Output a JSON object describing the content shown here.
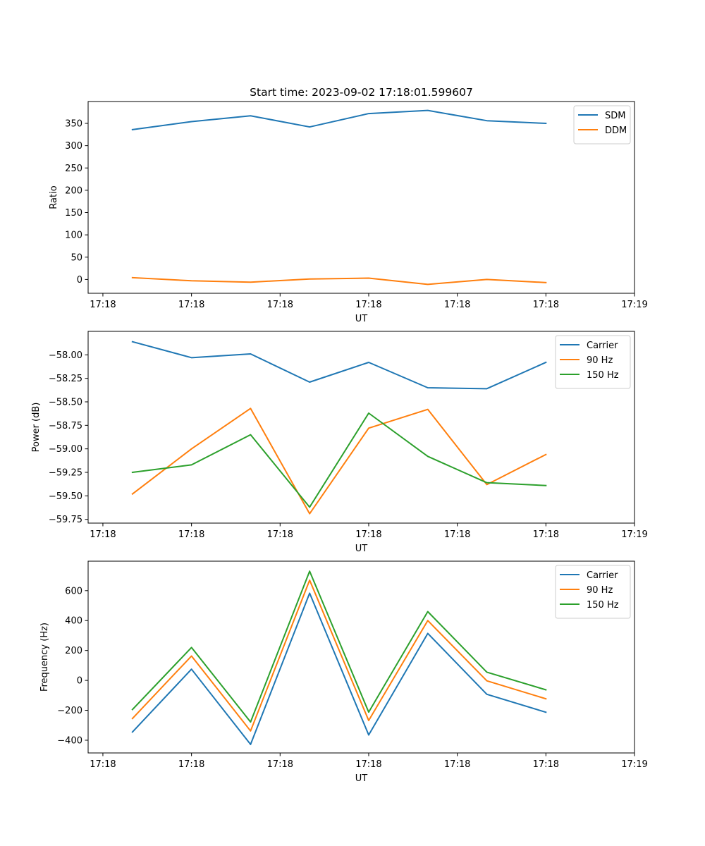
{
  "title": "Start time: 2023-09-02 17:18:01.599607",
  "colors": {
    "blue": "#1f77b4",
    "orange": "#ff7f0e",
    "green": "#2ca02c"
  },
  "chart_data": [
    {
      "type": "line",
      "title": "Start time: 2023-09-02 17:18:01.599607",
      "xlabel": "UT",
      "ylabel": "Ratio",
      "x": [
        1,
        2,
        3,
        4,
        5,
        6,
        7,
        8
      ],
      "xlim": [
        0.25,
        9.5
      ],
      "xticks": [
        0.5,
        2,
        3.5,
        5,
        6.5,
        8,
        9.5
      ],
      "xtick_labels": [
        "17:18",
        "17:18",
        "17:18",
        "17:18",
        "17:18",
        "17:18",
        "17:19"
      ],
      "ylim": [
        -31,
        399
      ],
      "yticks": [
        0,
        50,
        100,
        150,
        200,
        250,
        300,
        350
      ],
      "ytick_labels": [
        "0",
        "50",
        "100",
        "150",
        "200",
        "250",
        "300",
        "350"
      ],
      "legend": "top-right",
      "series": [
        {
          "name": "SDM",
          "color": "#1f77b4",
          "values": [
            336,
            354,
            367,
            342,
            372,
            379,
            356,
            350
          ]
        },
        {
          "name": "DDM",
          "color": "#ff7f0e",
          "values": [
            4,
            -3,
            -6,
            1,
            3,
            -11,
            0,
            -7
          ]
        }
      ]
    },
    {
      "type": "line",
      "title": "",
      "xlabel": "UT",
      "ylabel": "Power (dB)",
      "x": [
        1,
        2,
        3,
        4,
        5,
        6,
        7,
        8
      ],
      "xlim": [
        0.25,
        9.5
      ],
      "xticks": [
        0.5,
        2,
        3.5,
        5,
        6.5,
        8,
        9.5
      ],
      "xtick_labels": [
        "17:18",
        "17:18",
        "17:18",
        "17:18",
        "17:18",
        "17:18",
        "17:19"
      ],
      "ylim": [
        -59.79,
        -57.75
      ],
      "yticks": [
        -58.0,
        -58.25,
        -58.5,
        -58.75,
        -59.0,
        -59.25,
        -59.5,
        -59.75
      ],
      "ytick_labels": [
        "−58.00",
        "−58.25",
        "−58.50",
        "−58.75",
        "−59.00",
        "−59.25",
        "−59.50",
        "−59.75"
      ],
      "legend": "top-right",
      "series": [
        {
          "name": "Carrier",
          "color": "#1f77b4",
          "values": [
            -57.86,
            -58.03,
            -57.99,
            -58.29,
            -58.08,
            -58.35,
            -58.36,
            -58.08
          ]
        },
        {
          "name": "90 Hz",
          "color": "#ff7f0e",
          "values": [
            -59.48,
            -59.0,
            -58.57,
            -59.69,
            -58.78,
            -58.58,
            -59.38,
            -59.06
          ]
        },
        {
          "name": "150 Hz",
          "color": "#2ca02c",
          "values": [
            -59.25,
            -59.17,
            -58.85,
            -59.62,
            -58.62,
            -59.08,
            -59.36,
            -59.39
          ]
        }
      ]
    },
    {
      "type": "line",
      "title": "",
      "xlabel": "UT",
      "ylabel": "Frequency (Hz)",
      "x": [
        1,
        2,
        3,
        4,
        5,
        6,
        7,
        8
      ],
      "xlim": [
        0.25,
        9.5
      ],
      "xticks": [
        0.5,
        2,
        3.5,
        5,
        6.5,
        8,
        9.5
      ],
      "xtick_labels": [
        "17:18",
        "17:18",
        "17:18",
        "17:18",
        "17:18",
        "17:18",
        "17:19"
      ],
      "ylim": [
        -485,
        797
      ],
      "yticks": [
        -400,
        -200,
        0,
        200,
        400,
        600
      ],
      "ytick_labels": [
        "−400",
        "−200",
        "0",
        "200",
        "400",
        "600"
      ],
      "legend": "top-right",
      "series": [
        {
          "name": "Carrier",
          "color": "#1f77b4",
          "values": [
            -345,
            75,
            -428,
            583,
            -365,
            314,
            -93,
            -213
          ]
        },
        {
          "name": "90 Hz",
          "color": "#ff7f0e",
          "values": [
            -255,
            163,
            -338,
            670,
            -268,
            400,
            -3,
            -123
          ]
        },
        {
          "name": "150 Hz",
          "color": "#2ca02c",
          "values": [
            -195,
            220,
            -278,
            730,
            -212,
            460,
            55,
            -63
          ]
        }
      ]
    }
  ]
}
